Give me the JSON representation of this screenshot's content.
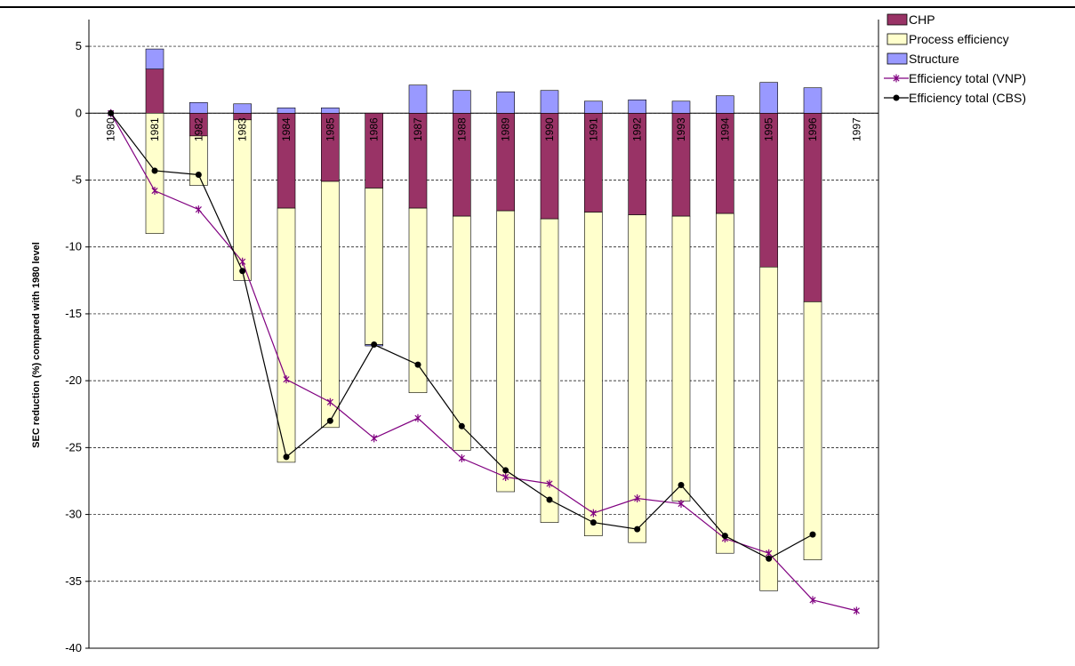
{
  "chart_data": {
    "type": "bar",
    "stacked": true,
    "title": "",
    "xlabel": "",
    "ylabel": "SEC reduction (%) compared with 1980 level",
    "ylim": [
      -40,
      7
    ],
    "yticks": [
      5,
      0,
      -5,
      -10,
      -15,
      -20,
      -25,
      -30,
      -35,
      -40
    ],
    "grid": "horizontal dashed",
    "legend": "right",
    "categories": [
      "1980",
      "1981",
      "1982",
      "1983",
      "1984",
      "1985",
      "1986",
      "1987",
      "1988",
      "1989",
      "1990",
      "1991",
      "1992",
      "1993",
      "1994",
      "1995",
      "1996",
      "1997"
    ],
    "series": [
      {
        "name": "CHP",
        "kind": "bar",
        "color": "#993366",
        "values": [
          0,
          3.3,
          -1.7,
          -0.5,
          -7.1,
          -5.1,
          -5.6,
          -7.1,
          -7.7,
          -7.3,
          -7.9,
          -7.4,
          -7.6,
          -7.7,
          -7.5,
          -11.5,
          -14.1,
          0
        ]
      },
      {
        "name": "Process efficiency",
        "kind": "bar",
        "color": "#FFFFCC",
        "values": [
          0,
          -9.0,
          -3.7,
          -12.0,
          -19.0,
          -18.4,
          -11.7,
          -13.8,
          -17.5,
          -21.0,
          -22.7,
          -24.2,
          -24.5,
          -21.3,
          -25.4,
          -24.2,
          -19.3,
          0
        ]
      },
      {
        "name": "Structure",
        "kind": "bar",
        "color": "#9999FF",
        "values": [
          0,
          1.5,
          0.8,
          0.7,
          0.4,
          0.4,
          -0.1,
          2.1,
          1.7,
          1.6,
          1.7,
          0.9,
          1.0,
          0.9,
          1.3,
          2.3,
          1.9,
          0
        ]
      },
      {
        "name": "Efficiency total (VNP)",
        "kind": "line",
        "marker": "star",
        "color": "#800080",
        "values": [
          0,
          -5.8,
          -7.2,
          -11.1,
          -19.9,
          -21.6,
          -24.3,
          -22.8,
          -25.8,
          -27.2,
          -27.7,
          -29.9,
          -28.8,
          -29.2,
          -31.8,
          -32.9,
          -36.4,
          -37.2
        ]
      },
      {
        "name": "Efficiency total (CBS)",
        "kind": "line",
        "marker": "circle",
        "color": "#000000",
        "values": [
          0,
          -4.3,
          -4.6,
          -11.8,
          -25.7,
          -23.0,
          -17.3,
          -18.8,
          -23.4,
          -26.7,
          -28.9,
          -30.6,
          -31.1,
          -27.8,
          -31.6,
          -33.3,
          -31.5,
          null
        ]
      }
    ]
  }
}
